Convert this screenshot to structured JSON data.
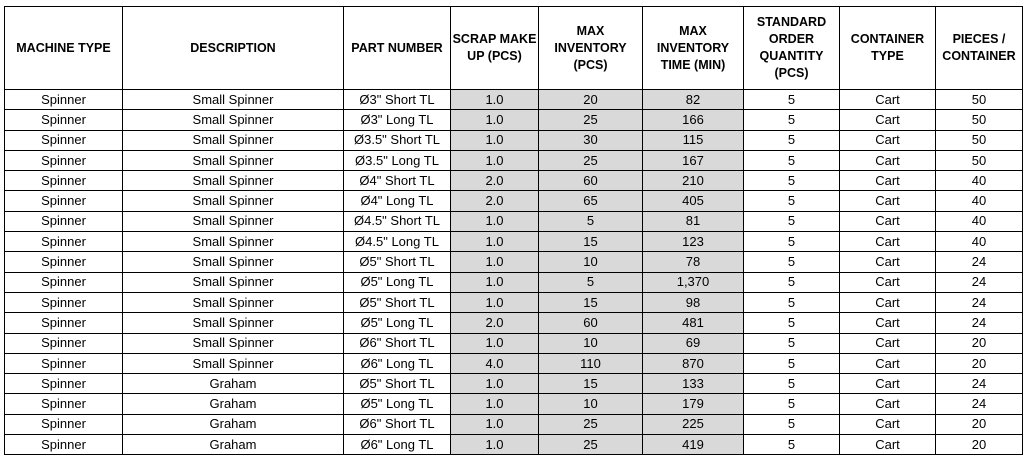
{
  "table": {
    "headers": [
      "MACHINE TYPE",
      "DESCRIPTION",
      "PART NUMBER",
      "SCRAP MAKE UP (PCS)",
      "MAX INVENTORY (PCS)",
      "MAX INVENTORY TIME (MIN)",
      "STANDARD ORDER QUANTITY (PCS)",
      "CONTAINER TYPE",
      "PIECES / CONTAINER"
    ],
    "rows": [
      [
        "Spinner",
        "Small Spinner",
        "Ø3\" Short TL",
        "1.0",
        "20",
        "82",
        "5",
        "Cart",
        "50"
      ],
      [
        "Spinner",
        "Small Spinner",
        "Ø3\" Long TL",
        "1.0",
        "25",
        "166",
        "5",
        "Cart",
        "50"
      ],
      [
        "Spinner",
        "Small Spinner",
        "Ø3.5\" Short TL",
        "1.0",
        "30",
        "115",
        "5",
        "Cart",
        "50"
      ],
      [
        "Spinner",
        "Small Spinner",
        "Ø3.5\" Long TL",
        "1.0",
        "25",
        "167",
        "5",
        "Cart",
        "50"
      ],
      [
        "Spinner",
        "Small Spinner",
        "Ø4\" Short TL",
        "2.0",
        "60",
        "210",
        "5",
        "Cart",
        "40"
      ],
      [
        "Spinner",
        "Small Spinner",
        "Ø4\" Long TL",
        "2.0",
        "65",
        "405",
        "5",
        "Cart",
        "40"
      ],
      [
        "Spinner",
        "Small Spinner",
        "Ø4.5\" Short TL",
        "1.0",
        "5",
        "81",
        "5",
        "Cart",
        "40"
      ],
      [
        "Spinner",
        "Small Spinner",
        "Ø4.5\" Long TL",
        "1.0",
        "15",
        "123",
        "5",
        "Cart",
        "40"
      ],
      [
        "Spinner",
        "Small Spinner",
        "Ø5\" Short TL",
        "1.0",
        "10",
        "78",
        "5",
        "Cart",
        "24"
      ],
      [
        "Spinner",
        "Small Spinner",
        "Ø5\" Long TL",
        "1.0",
        "5",
        "1,370",
        "5",
        "Cart",
        "24"
      ],
      [
        "Spinner",
        "Small Spinner",
        "Ø5\" Short TL",
        "1.0",
        "15",
        "98",
        "5",
        "Cart",
        "24"
      ],
      [
        "Spinner",
        "Small Spinner",
        "Ø5\" Long TL",
        "2.0",
        "60",
        "481",
        "5",
        "Cart",
        "24"
      ],
      [
        "Spinner",
        "Small Spinner",
        "Ø6\" Short TL",
        "1.0",
        "10",
        "69",
        "5",
        "Cart",
        "20"
      ],
      [
        "Spinner",
        "Small Spinner",
        "Ø6\" Long TL",
        "4.0",
        "110",
        "870",
        "5",
        "Cart",
        "20"
      ],
      [
        "Spinner",
        "Graham",
        "Ø5\" Short TL",
        "1.0",
        "15",
        "133",
        "5",
        "Cart",
        "24"
      ],
      [
        "Spinner",
        "Graham",
        "Ø5\" Long TL",
        "1.0",
        "10",
        "179",
        "5",
        "Cart",
        "24"
      ],
      [
        "Spinner",
        "Graham",
        "Ø6\" Short TL",
        "1.0",
        "25",
        "225",
        "5",
        "Cart",
        "20"
      ],
      [
        "Spinner",
        "Graham",
        "Ø6\" Long TL",
        "1.0",
        "25",
        "419",
        "5",
        "Cart",
        "20"
      ]
    ]
  }
}
